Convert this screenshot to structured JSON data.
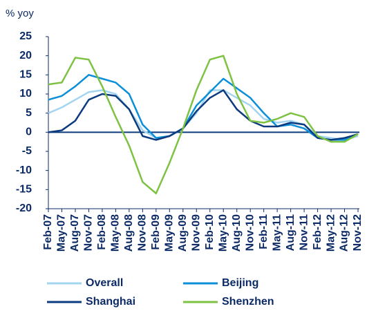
{
  "chart_data": {
    "type": "line",
    "y_axis_label": "% yoy",
    "categories": [
      "Feb-07",
      "May-07",
      "Aug-07",
      "Nov-07",
      "Feb-08",
      "May-08",
      "Aug-08",
      "Nov-08",
      "Feb-09",
      "May-09",
      "Aug-09",
      "Nov-09",
      "Feb-10",
      "May-10",
      "Aug-10",
      "Nov-10",
      "Feb-11",
      "May-11",
      "Aug-11",
      "Nov-11",
      "Feb-12",
      "May-12",
      "Aug-12",
      "Nov-12"
    ],
    "series": [
      {
        "name": "Overall",
        "color": "#a3d4f0",
        "values": [
          5,
          6.5,
          8.5,
          10.5,
          11,
          10,
          6,
          0.5,
          -1.5,
          -1,
          1,
          5,
          11,
          11,
          9,
          7,
          3.5,
          2.5,
          3,
          2,
          -1,
          -1.5,
          -2,
          -1
        ]
      },
      {
        "name": "Beijing",
        "color": "#0a8fd8",
        "values": [
          8.5,
          9.5,
          12,
          15,
          14,
          13,
          10,
          2,
          -1.5,
          -1,
          1,
          7,
          10.5,
          14,
          11.5,
          9,
          5,
          1.5,
          2,
          1,
          -1.5,
          -2,
          -2,
          -0.5
        ]
      },
      {
        "name": "Shanghai",
        "color": "#0b3b7e",
        "values": [
          0,
          0.5,
          3,
          8.5,
          10,
          9.5,
          6,
          -1,
          -2,
          -1,
          1,
          5.5,
          9,
          11,
          6,
          3,
          1.5,
          1.5,
          2.5,
          2,
          -1.5,
          -2,
          -1.5,
          -0.5
        ]
      },
      {
        "name": "Shenzhen",
        "color": "#7dc242",
        "values": [
          12.5,
          13,
          19.5,
          19,
          12,
          4,
          -3.5,
          -13,
          -16,
          -8,
          1,
          11,
          19,
          20,
          10,
          3,
          2.5,
          3.5,
          5,
          4,
          -1,
          -2.5,
          -2.5,
          -0.5
        ]
      }
    ],
    "ylim": [
      -20,
      25
    ],
    "yticks": [
      -20,
      -15,
      -10,
      -5,
      0,
      5,
      10,
      15,
      20,
      25
    ],
    "legend": "bottom"
  }
}
